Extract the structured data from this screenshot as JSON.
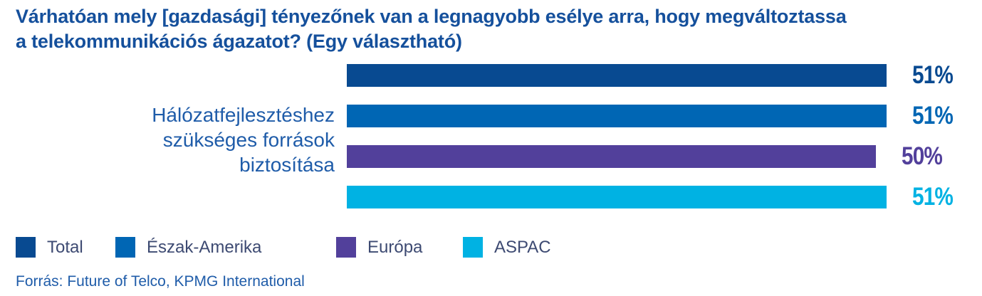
{
  "header": {
    "title_line1": "Várhatóan mely [gazdasági] tényezőnek van a legnagyobb esélye arra, hogy megváltoztassa",
    "title_line2": "a telekommunikációs ágazatot? (Egy választható)"
  },
  "footer": {
    "source": "Forrás: Future of Telco, KPMG International"
  },
  "colors": {
    "title": "#15509C",
    "category_label": "#1F5CA9",
    "legend_text": "#3D4A72",
    "source_text": "#1F5CA9"
  },
  "chart_data": {
    "type": "bar",
    "orientation": "horizontal",
    "title": "Várhatóan mely [gazdasági] tényezőnek van a legnagyobb esélye arra, hogy megváltoztassa a telekommunikációs ágazatot? (Egy választható)",
    "categories": [
      "Hálózatfejlesztéshez szükséges források biztosítása"
    ],
    "series": [
      {
        "name": "Total",
        "color": "#084A91",
        "values": [
          51
        ]
      },
      {
        "name": "Észak-Amerika",
        "color": "#0066B4",
        "values": [
          51
        ]
      },
      {
        "name": "Európa",
        "color": "#52409B",
        "values": [
          50
        ]
      },
      {
        "name": "ASPAC",
        "color": "#00B2E3",
        "values": [
          51
        ]
      }
    ],
    "value_suffix": "%",
    "data_labels": true,
    "legend_position": "bottom",
    "axis_visible": false,
    "grid": false
  }
}
